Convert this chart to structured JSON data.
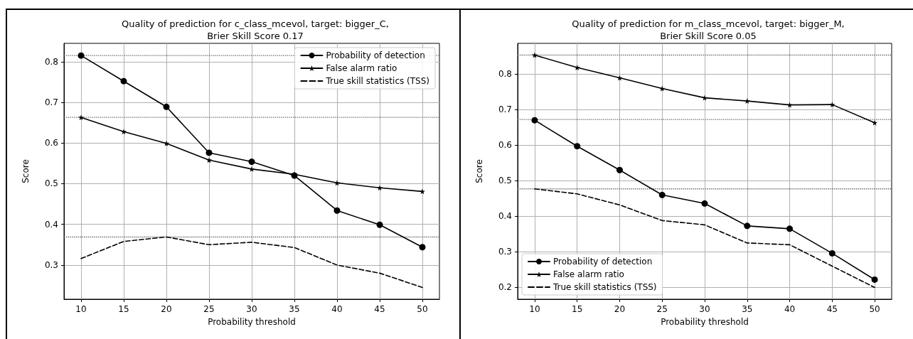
{
  "chart_data": [
    {
      "type": "line",
      "title": "Quality of prediction for c_class_mcevol, target: bigger_C,\nBrier Skill Score 0.17",
      "xlabel": "Probability threshold",
      "ylabel": "Score",
      "x": [
        10,
        15,
        20,
        25,
        30,
        35,
        40,
        45,
        50
      ],
      "xlim": [
        8,
        52
      ],
      "xticks": [
        10,
        15,
        20,
        25,
        30,
        35,
        40,
        45,
        50
      ],
      "ylim": [
        0.216,
        0.845
      ],
      "yticks": [
        0.3,
        0.4,
        0.5,
        0.6,
        0.7,
        0.8
      ],
      "grid": true,
      "legend": "top right",
      "series": [
        {
          "name": "Probability of detection",
          "color": "#000000",
          "marker": "circle",
          "line_style": "solid",
          "values": [
            0.815,
            0.752,
            0.689,
            0.576,
            0.554,
            0.52,
            0.434,
            0.399,
            0.344
          ]
        },
        {
          "name": "False alarm ratio",
          "color": "#000000",
          "marker": "star",
          "line_style": "solid",
          "values": [
            0.663,
            0.628,
            0.599,
            0.558,
            0.536,
            0.523,
            0.502,
            0.49,
            0.481
          ]
        },
        {
          "name": "True skill statistics (TSS)",
          "color": "#000000",
          "marker": "none",
          "line_style": "dashed",
          "values": [
            0.316,
            0.358,
            0.369,
            0.35,
            0.356,
            0.343,
            0.3,
            0.28,
            0.245
          ]
        }
      ],
      "ref_lines": [
        {
          "axis": "y",
          "value": 0.815,
          "color": "#666666",
          "line_style": "dotted"
        },
        {
          "axis": "y",
          "value": 0.663,
          "color": "#666666",
          "line_style": "dotted"
        },
        {
          "axis": "y",
          "value": 0.369,
          "color": "#666666",
          "line_style": "dotted"
        }
      ]
    },
    {
      "type": "line",
      "title": "Quality of prediction for m_class_mcevol, target: bigger_M,\nBrier Skill Score 0.05",
      "xlabel": "Probability threshold",
      "ylabel": "Score",
      "x": [
        10,
        15,
        20,
        25,
        30,
        35,
        40,
        45,
        50
      ],
      "xlim": [
        8,
        52
      ],
      "xticks": [
        10,
        15,
        20,
        25,
        30,
        35,
        40,
        45,
        50
      ],
      "ylim": [
        0.167,
        0.886
      ],
      "yticks": [
        0.2,
        0.3,
        0.4,
        0.5,
        0.6,
        0.7,
        0.8
      ],
      "grid": true,
      "legend": "bottom left",
      "series": [
        {
          "name": "Probability of detection",
          "color": "#000000",
          "marker": "circle",
          "line_style": "solid",
          "values": [
            0.67,
            0.597,
            0.53,
            0.46,
            0.436,
            0.373,
            0.365,
            0.296,
            0.222
          ]
        },
        {
          "name": "False alarm ratio",
          "color": "#000000",
          "marker": "star",
          "line_style": "solid",
          "values": [
            0.853,
            0.818,
            0.789,
            0.759,
            0.733,
            0.724,
            0.713,
            0.714,
            0.663
          ]
        },
        {
          "name": "True skill statistics (TSS)",
          "color": "#000000",
          "marker": "none",
          "line_style": "dashed",
          "values": [
            0.477,
            0.463,
            0.432,
            0.388,
            0.376,
            0.325,
            0.32,
            0.26,
            0.2
          ]
        }
      ],
      "ref_lines": [
        {
          "axis": "y",
          "value": 0.853,
          "color": "#666666",
          "line_style": "dotted"
        },
        {
          "axis": "y",
          "value": 0.672,
          "color": "#666666",
          "line_style": "dotted"
        },
        {
          "axis": "y",
          "value": 0.477,
          "color": "#666666",
          "line_style": "dotted"
        }
      ]
    }
  ]
}
